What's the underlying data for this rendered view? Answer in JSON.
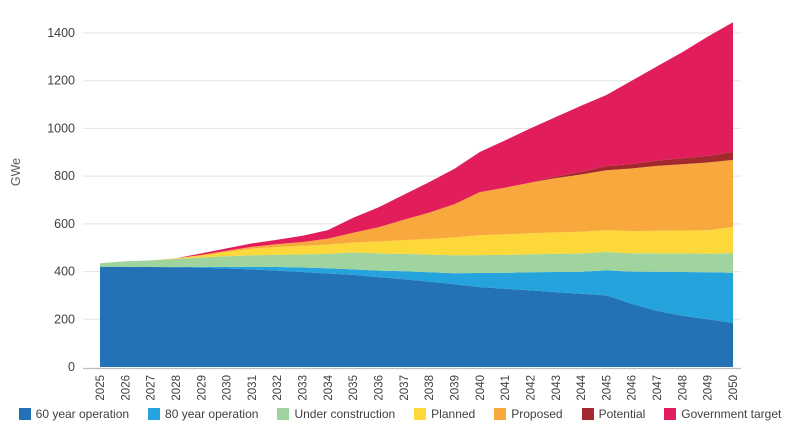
{
  "page": {
    "background": "#ffffff"
  },
  "colors": {
    "grid_line": "#e3e3e3",
    "axis_line": "#bcbcbc",
    "tick_text": "#414141",
    "axis_label_text": "#58595b"
  },
  "chart_data": {
    "type": "area",
    "stacked": true,
    "title": "",
    "xlabel": "",
    "ylabel": "GWe",
    "grid": "horizontal",
    "legend_position": "bottom",
    "ylim": [
      0,
      1500
    ],
    "yticks": [
      0,
      200,
      400,
      600,
      800,
      1000,
      1200,
      1400
    ],
    "x": [
      2025,
      2026,
      2027,
      2028,
      2029,
      2030,
      2031,
      2032,
      2033,
      2034,
      2035,
      2036,
      2037,
      2038,
      2039,
      2040,
      2041,
      2042,
      2043,
      2044,
      2045,
      2046,
      2047,
      2048,
      2049,
      2050
    ],
    "series": [
      {
        "name": "60 year operation",
        "color": "#2272b5",
        "values": [
          420,
          420,
          419,
          418,
          416,
          413,
          409,
          404,
          398,
          392,
          386,
          377,
          368,
          358,
          347,
          335,
          328,
          321,
          314,
          307,
          300,
          265,
          235,
          215,
          200,
          185
        ]
      },
      {
        "name": "80 year operation",
        "color": "#25a3dc",
        "values": [
          0,
          0,
          0,
          1,
          3,
          6,
          11,
          15,
          19,
          22,
          23,
          27,
          33,
          39,
          46,
          59,
          67,
          76,
          84,
          92,
          105,
          135,
          164,
          183,
          197,
          210
        ]
      },
      {
        "name": "Under construction",
        "color": "#a0d49e",
        "values": [
          15,
          23,
          28,
          34,
          40,
          45,
          48,
          51,
          55,
          60,
          71,
          72,
          73,
          74,
          75,
          75,
          75,
          76,
          76,
          77,
          77,
          77,
          77,
          78,
          78,
          83
        ]
      },
      {
        "name": "Planned",
        "color": "#fdd83a",
        "values": [
          0,
          0,
          0,
          2,
          8,
          18,
          28,
          33,
          36,
          39,
          42,
          50,
          58,
          66,
          75,
          84,
          86,
          88,
          90,
          91,
          92,
          93,
          95,
          96,
          98,
          109
        ]
      },
      {
        "name": "Proposed",
        "color": "#f9a83e",
        "values": [
          0,
          0,
          0,
          1,
          3,
          5,
          8,
          12,
          16,
          25,
          41,
          60,
          85,
          110,
          140,
          180,
          196,
          212,
          228,
          240,
          251,
          262,
          272,
          278,
          284,
          281
        ]
      },
      {
        "name": "Potential",
        "color": "#a3292e",
        "values": [
          0,
          0,
          0,
          0,
          0,
          0,
          0,
          0,
          0,
          0,
          0,
          0,
          0,
          0,
          0,
          0,
          0,
          0,
          6,
          11,
          17,
          19,
          22,
          25,
          28,
          33
        ]
      },
      {
        "name": "Government target",
        "color": "#e21d5c",
        "values": [
          0,
          0,
          0,
          0,
          6,
          10,
          14,
          18,
          26,
          36,
          63,
          83,
          105,
          128,
          148,
          168,
          198,
          227,
          250,
          277,
          298,
          349,
          395,
          445,
          500,
          544
        ]
      }
    ]
  }
}
